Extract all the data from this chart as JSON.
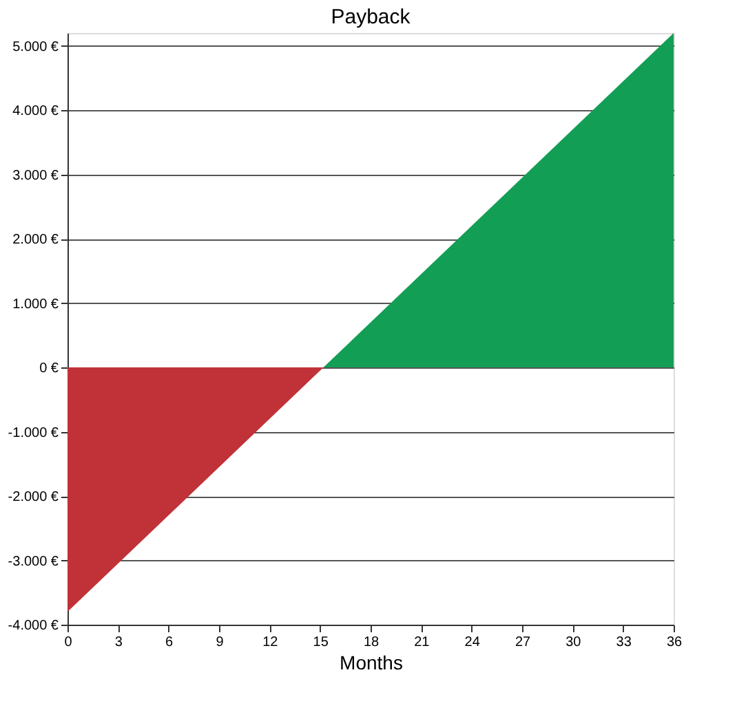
{
  "chart_data": {
    "type": "area",
    "title": "Payback",
    "xlabel": "Months",
    "series": [
      {
        "color": "#c03237",
        "x": [
          0,
          15.2
        ],
        "values": [
          -3800,
          0
        ]
      },
      {
        "color": "#139e55",
        "x": [
          15.2,
          36
        ],
        "values": [
          0,
          5200
        ]
      }
    ],
    "xlim": [
      0,
      36
    ],
    "xticks": [
      0,
      3,
      6,
      9,
      12,
      15,
      18,
      21,
      24,
      27,
      30,
      33,
      36
    ],
    "ylim": [
      -4000,
      5200
    ],
    "yticks": [
      {
        "value": -4000,
        "label": "-4.000 €"
      },
      {
        "value": -3000,
        "label": "-3.000 €"
      },
      {
        "value": -2000,
        "label": "-2.000 €"
      },
      {
        "value": -1000,
        "label": "-1.000 €"
      },
      {
        "value": 0,
        "label": "0 €"
      },
      {
        "value": 1000,
        "label": "1.000 €"
      },
      {
        "value": 2000,
        "label": "2.000 €"
      },
      {
        "value": 3000,
        "label": "3.000 €"
      },
      {
        "value": 4000,
        "label": "4.000 €"
      },
      {
        "value": 5000,
        "label": "5.000 €"
      }
    ],
    "grid": "y"
  }
}
